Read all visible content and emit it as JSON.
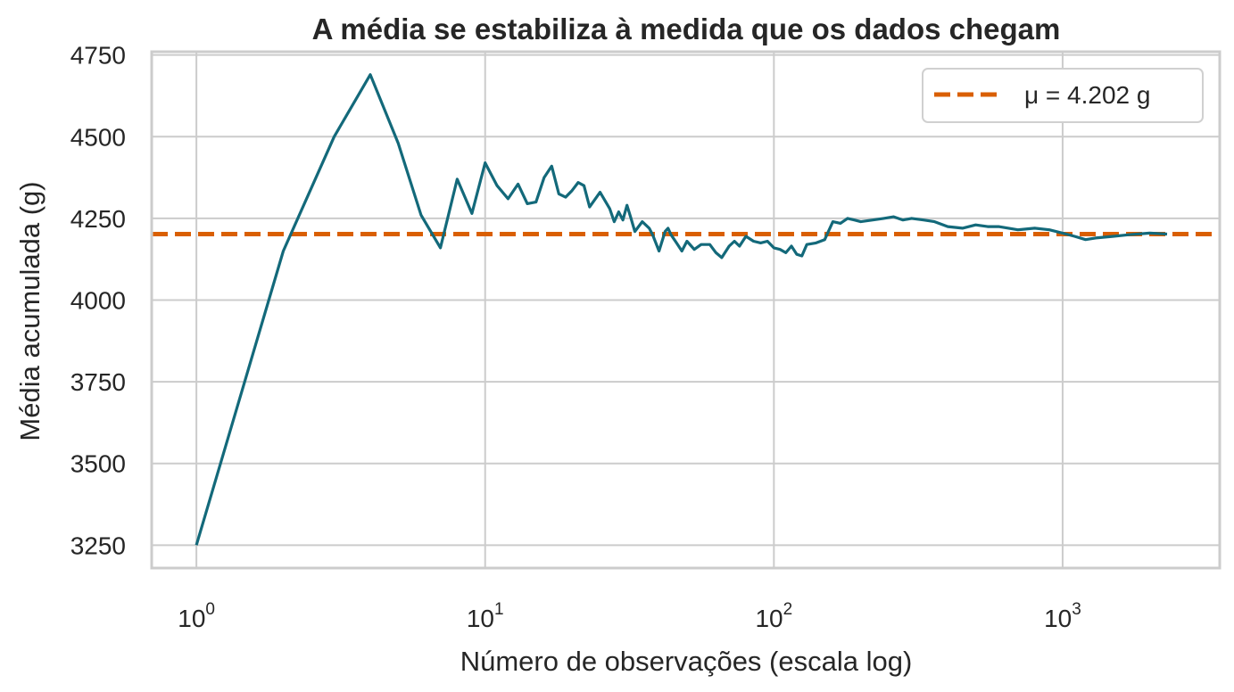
{
  "chart_data": {
    "type": "line",
    "title": "A média se estabiliza à medida que os dados chegam",
    "xlabel": "Número de observações (escala log)",
    "ylabel": "Média acumulada (g)",
    "xscale": "log",
    "xlim": [
      0.7,
      3500
    ],
    "ylim": [
      3180,
      4760
    ],
    "x_ticks": [
      {
        "base": "10",
        "exp": "0",
        "value": 1
      },
      {
        "base": "10",
        "exp": "1",
        "value": 10
      },
      {
        "base": "10",
        "exp": "2",
        "value": 100
      },
      {
        "base": "10",
        "exp": "3",
        "value": 1000
      }
    ],
    "y_ticks": [
      3250,
      3500,
      3750,
      4000,
      4250,
      4500,
      4750
    ],
    "grid": true,
    "legend_position": "top-right",
    "reference_line": {
      "label": "μ = 4.202 g",
      "y": 4202,
      "color": "#d95f02",
      "style": "dashed"
    },
    "series": [
      {
        "color": "#13697a",
        "x": [
          1,
          2,
          3,
          4,
          5,
          6,
          7,
          8,
          9,
          10,
          11,
          12,
          13,
          14,
          15,
          16,
          17,
          18,
          19,
          20,
          21,
          22,
          23,
          25,
          27,
          28,
          29,
          30,
          31,
          32,
          33,
          35,
          37,
          38,
          40,
          42,
          43,
          44,
          46,
          48,
          50,
          53,
          56,
          60,
          63,
          66,
          70,
          73,
          76,
          80,
          85,
          90,
          95,
          100,
          105,
          110,
          115,
          120,
          125,
          130,
          140,
          150,
          160,
          170,
          180,
          190,
          200,
          220,
          240,
          260,
          280,
          300,
          330,
          360,
          400,
          450,
          500,
          550,
          600,
          650,
          700,
          800,
          900,
          1000,
          1100,
          1200,
          1300,
          1500,
          1700,
          2000,
          2300
        ],
        "y": [
          3250,
          4150,
          4500,
          4690,
          4480,
          4260,
          4160,
          4370,
          4265,
          4420,
          4350,
          4310,
          4355,
          4295,
          4300,
          4375,
          4410,
          4325,
          4315,
          4335,
          4360,
          4350,
          4285,
          4330,
          4280,
          4240,
          4270,
          4245,
          4290,
          4250,
          4210,
          4240,
          4220,
          4200,
          4150,
          4210,
          4220,
          4200,
          4175,
          4150,
          4180,
          4155,
          4170,
          4170,
          4145,
          4130,
          4165,
          4180,
          4165,
          4195,
          4180,
          4175,
          4180,
          4160,
          4155,
          4145,
          4165,
          4140,
          4135,
          4170,
          4175,
          4185,
          4240,
          4235,
          4250,
          4245,
          4240,
          4245,
          4250,
          4255,
          4245,
          4250,
          4245,
          4240,
          4225,
          4220,
          4230,
          4225,
          4225,
          4220,
          4215,
          4220,
          4215,
          4205,
          4195,
          4185,
          4190,
          4195,
          4200,
          4205,
          4202
        ]
      }
    ]
  }
}
